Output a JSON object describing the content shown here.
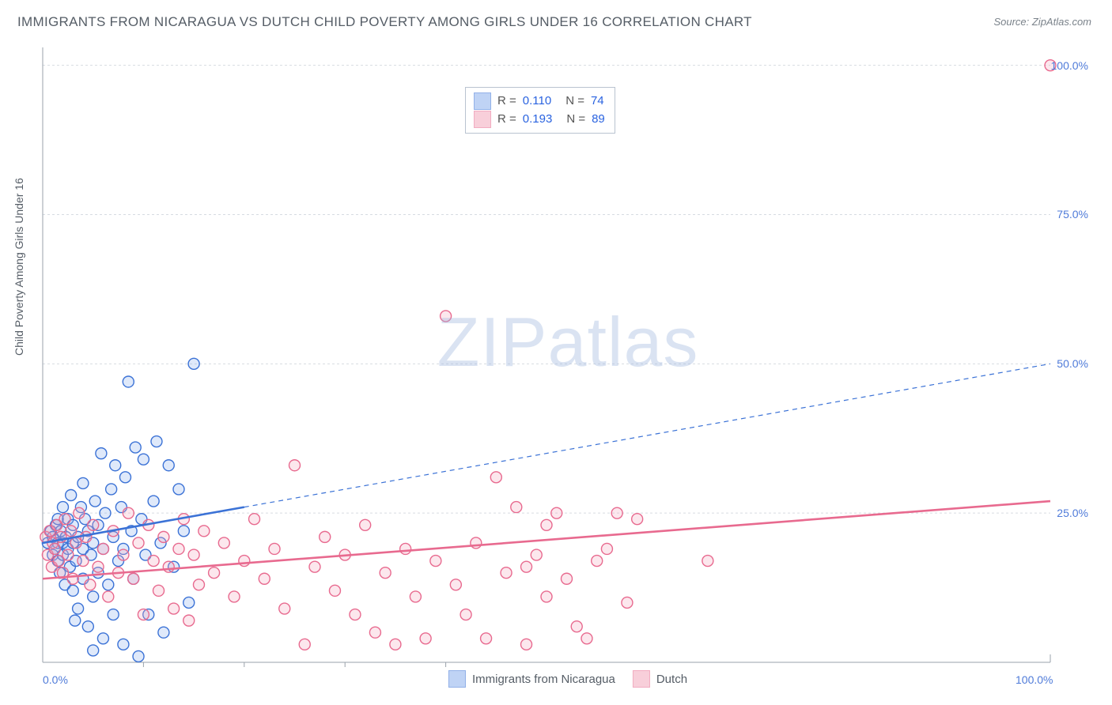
{
  "title": "IMMIGRANTS FROM NICARAGUA VS DUTCH CHILD POVERTY AMONG GIRLS UNDER 16 CORRELATION CHART",
  "source": "Source: ZipAtlas.com",
  "ylabel": "Child Poverty Among Girls Under 16",
  "watermark": "ZIPatlas",
  "chart": {
    "type": "scatter",
    "xlim": [
      0,
      100
    ],
    "ylim": [
      0,
      103
    ],
    "yticks": [
      {
        "v": 25,
        "label": "25.0%"
      },
      {
        "v": 50,
        "label": "50.0%"
      },
      {
        "v": 75,
        "label": "75.0%"
      },
      {
        "v": 100,
        "label": "100.0%"
      }
    ],
    "xticks_major": [
      {
        "v": 0,
        "label": "0.0%"
      },
      {
        "v": 100,
        "label": "100.0%"
      }
    ],
    "xticks_minor": [
      10,
      20,
      30,
      40
    ],
    "grid_color": "#d6dbe1",
    "grid_dash": "3,3",
    "axis_color": "#9aa2ab",
    "background_color": "#ffffff",
    "marker_radius": 7,
    "marker_stroke_width": 1.4,
    "marker_fill_opacity": 0.28,
    "trend_solid_width": 2.6,
    "trend_dash_width": 1.2,
    "trend_dash": "6,5",
    "series": [
      {
        "key": "nicaragua",
        "label": "Immigrants from Nicaragua",
        "color_stroke": "#3b72d6",
        "color_fill": "#8bb0ee",
        "R": "0.110",
        "N": "74",
        "trend": {
          "y_at_x0": 20,
          "y_at_x100": 50,
          "solid_until_x": 20
        },
        "points": [
          [
            0.5,
            20
          ],
          [
            0.8,
            22
          ],
          [
            1,
            18
          ],
          [
            1,
            21
          ],
          [
            1.2,
            19
          ],
          [
            1.3,
            23
          ],
          [
            1.5,
            17
          ],
          [
            1.5,
            20
          ],
          [
            1.5,
            24
          ],
          [
            1.7,
            15
          ],
          [
            1.8,
            22
          ],
          [
            2,
            18
          ],
          [
            2,
            20
          ],
          [
            2,
            26
          ],
          [
            2.2,
            13
          ],
          [
            2.3,
            21
          ],
          [
            2.5,
            19
          ],
          [
            2.5,
            24
          ],
          [
            2.7,
            16
          ],
          [
            2.8,
            28
          ],
          [
            3,
            12
          ],
          [
            3,
            20
          ],
          [
            3,
            23
          ],
          [
            3.2,
            7
          ],
          [
            3.3,
            17
          ],
          [
            3.5,
            9
          ],
          [
            3.5,
            21
          ],
          [
            3.8,
            26
          ],
          [
            4,
            14
          ],
          [
            4,
            19
          ],
          [
            4,
            30
          ],
          [
            4.2,
            24
          ],
          [
            4.5,
            6
          ],
          [
            4.5,
            22
          ],
          [
            4.8,
            18
          ],
          [
            5,
            2
          ],
          [
            5,
            11
          ],
          [
            5,
            20
          ],
          [
            5.2,
            27
          ],
          [
            5.5,
            15
          ],
          [
            5.5,
            23
          ],
          [
            5.8,
            35
          ],
          [
            6,
            4
          ],
          [
            6,
            19
          ],
          [
            6.2,
            25
          ],
          [
            6.5,
            13
          ],
          [
            6.8,
            29
          ],
          [
            7,
            8
          ],
          [
            7,
            21
          ],
          [
            7.2,
            33
          ],
          [
            7.5,
            17
          ],
          [
            7.8,
            26
          ],
          [
            8,
            3
          ],
          [
            8,
            19
          ],
          [
            8.2,
            31
          ],
          [
            8.5,
            47
          ],
          [
            8.8,
            22
          ],
          [
            9,
            14
          ],
          [
            9.2,
            36
          ],
          [
            9.5,
            1
          ],
          [
            9.8,
            24
          ],
          [
            10,
            34
          ],
          [
            10.2,
            18
          ],
          [
            10.5,
            8
          ],
          [
            11,
            27
          ],
          [
            11.3,
            37
          ],
          [
            11.7,
            20
          ],
          [
            12,
            5
          ],
          [
            12.5,
            33
          ],
          [
            13,
            16
          ],
          [
            13.5,
            29
          ],
          [
            14,
            22
          ],
          [
            14.5,
            10
          ],
          [
            15,
            50
          ]
        ]
      },
      {
        "key": "dutch",
        "label": "Dutch",
        "color_stroke": "#e86a8f",
        "color_fill": "#f4a9bd",
        "R": "0.193",
        "N": "89",
        "trend": {
          "y_at_x0": 14,
          "y_at_x100": 27,
          "solid_until_x": 100
        },
        "points": [
          [
            0.3,
            21
          ],
          [
            0.5,
            18
          ],
          [
            0.7,
            22
          ],
          [
            0.9,
            16
          ],
          [
            1,
            20
          ],
          [
            1.2,
            19
          ],
          [
            1.4,
            23
          ],
          [
            1.6,
            17
          ],
          [
            1.8,
            21
          ],
          [
            2,
            15
          ],
          [
            2.2,
            24
          ],
          [
            2.5,
            18
          ],
          [
            2.8,
            22
          ],
          [
            3,
            14
          ],
          [
            3.3,
            20
          ],
          [
            3.6,
            25
          ],
          [
            4,
            17
          ],
          [
            4.3,
            21
          ],
          [
            4.7,
            13
          ],
          [
            5,
            23
          ],
          [
            5.5,
            16
          ],
          [
            6,
            19
          ],
          [
            6.5,
            11
          ],
          [
            7,
            22
          ],
          [
            7.5,
            15
          ],
          [
            8,
            18
          ],
          [
            8.5,
            25
          ],
          [
            9,
            14
          ],
          [
            9.5,
            20
          ],
          [
            10,
            8
          ],
          [
            10.5,
            23
          ],
          [
            11,
            17
          ],
          [
            11.5,
            12
          ],
          [
            12,
            21
          ],
          [
            12.5,
            16
          ],
          [
            13,
            9
          ],
          [
            13.5,
            19
          ],
          [
            14,
            24
          ],
          [
            14.5,
            7
          ],
          [
            15,
            18
          ],
          [
            15.5,
            13
          ],
          [
            16,
            22
          ],
          [
            17,
            15
          ],
          [
            18,
            20
          ],
          [
            19,
            11
          ],
          [
            20,
            17
          ],
          [
            21,
            24
          ],
          [
            22,
            14
          ],
          [
            23,
            19
          ],
          [
            24,
            9
          ],
          [
            25,
            33
          ],
          [
            26,
            3
          ],
          [
            27,
            16
          ],
          [
            28,
            21
          ],
          [
            29,
            12
          ],
          [
            30,
            18
          ],
          [
            31,
            8
          ],
          [
            32,
            23
          ],
          [
            33,
            5
          ],
          [
            34,
            15
          ],
          [
            35,
            3
          ],
          [
            36,
            19
          ],
          [
            37,
            11
          ],
          [
            38,
            4
          ],
          [
            39,
            17
          ],
          [
            40,
            58
          ],
          [
            41,
            13
          ],
          [
            42,
            8
          ],
          [
            43,
            20
          ],
          [
            44,
            4
          ],
          [
            45,
            31
          ],
          [
            46,
            15
          ],
          [
            47,
            26
          ],
          [
            48,
            3
          ],
          [
            49,
            18
          ],
          [
            50,
            11
          ],
          [
            51,
            25
          ],
          [
            53,
            6
          ],
          [
            55,
            17
          ],
          [
            57,
            25
          ],
          [
            59,
            24
          ],
          [
            48,
            16
          ],
          [
            50,
            23
          ],
          [
            52,
            14
          ],
          [
            54,
            4
          ],
          [
            56,
            19
          ],
          [
            58,
            10
          ],
          [
            66,
            17
          ],
          [
            100,
            100
          ]
        ]
      }
    ],
    "legend_bottom": [
      {
        "series": "nicaragua"
      },
      {
        "series": "dutch"
      }
    ]
  }
}
